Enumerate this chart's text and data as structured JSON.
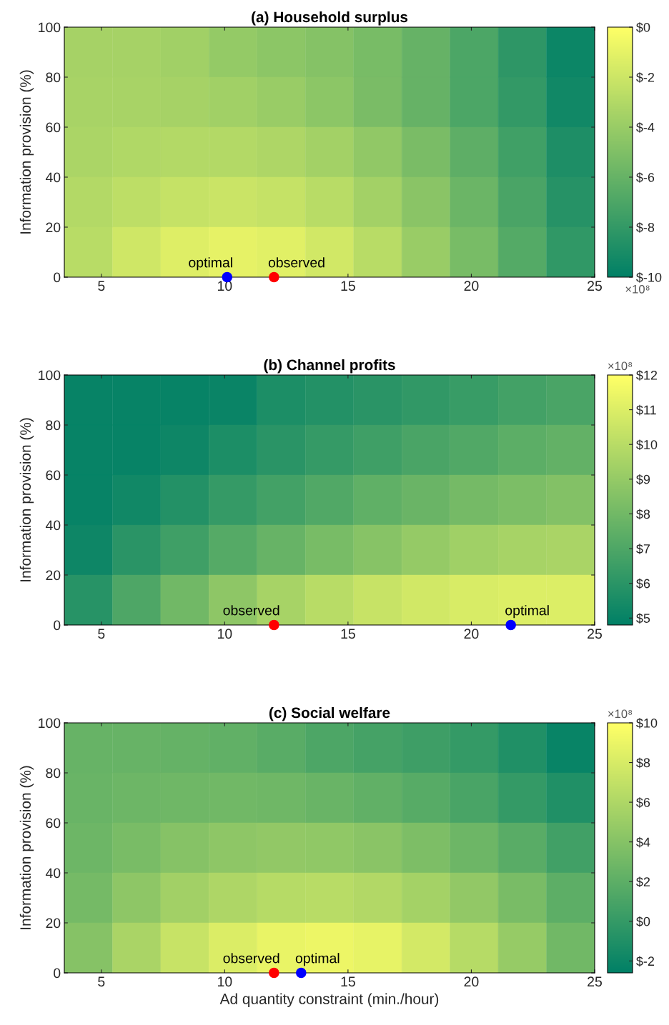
{
  "chart_data": [
    {
      "type": "heatmap",
      "title": "(a) Household surplus",
      "ylabel": "Information provision (%)",
      "xlim": [
        3.5,
        25
      ],
      "xticks": [
        5,
        10,
        15,
        20,
        25
      ],
      "ylim": [
        0,
        100
      ],
      "yticks": [
        0,
        20,
        40,
        60,
        80,
        100
      ],
      "cells": [
        [
          -3.5,
          -3.5,
          -3.7,
          -4.2,
          -4.5,
          -4.8,
          -5.3,
          -6.0,
          -7.0,
          -8.2,
          -9.5
        ],
        [
          -3.4,
          -3.4,
          -3.5,
          -3.7,
          -4.0,
          -4.5,
          -5.2,
          -6.0,
          -7.0,
          -8.0,
          -9.3
        ],
        [
          -3.3,
          -3.1,
          -3.0,
          -3.0,
          -3.2,
          -3.6,
          -4.3,
          -5.2,
          -6.3,
          -7.5,
          -8.8
        ],
        [
          -3.0,
          -2.6,
          -2.3,
          -2.1,
          -2.3,
          -2.8,
          -3.6,
          -4.6,
          -5.8,
          -7.1,
          -8.5
        ],
        [
          -2.8,
          -1.9,
          -1.3,
          -1.0,
          -1.2,
          -1.8,
          -2.8,
          -4.0,
          -5.3,
          -6.7,
          -8.1
        ]
      ],
      "clim": [
        -10,
        0
      ],
      "cticks": [
        {
          "value": 0,
          "label": "$0"
        },
        {
          "value": -2,
          "label": "$-2"
        },
        {
          "value": -4,
          "label": "$-4"
        },
        {
          "value": -6,
          "label": "$-6"
        },
        {
          "value": -8,
          "label": "$-8"
        },
        {
          "value": -10,
          "label": "$-10"
        }
      ],
      "annotations": [
        "×10⁸"
      ],
      "series": [
        {
          "type": "scatter",
          "name": "optimal",
          "color": "#0000ff",
          "x": [
            10.1
          ],
          "values": [
            0
          ]
        },
        {
          "type": "scatter",
          "name": "observed",
          "color": "#ff0000",
          "x": [
            12
          ],
          "values": [
            0
          ]
        }
      ]
    },
    {
      "type": "heatmap",
      "title": "(b) Channel profits",
      "ylabel": "Information provision (%)",
      "xlim": [
        3.5,
        25
      ],
      "xticks": [
        5,
        10,
        15,
        20,
        25
      ],
      "ylim": [
        0,
        100
      ],
      "yticks": [
        0,
        20,
        40,
        60,
        80,
        100
      ],
      "cells": [
        [
          5.0,
          5.0,
          5.0,
          5.1,
          5.6,
          5.8,
          6.0,
          6.2,
          6.4,
          6.7,
          6.9
        ],
        [
          5.0,
          5.0,
          5.2,
          5.6,
          6.0,
          6.3,
          6.6,
          6.9,
          7.1,
          7.4,
          7.6
        ],
        [
          5.0,
          5.3,
          5.8,
          6.3,
          6.7,
          7.1,
          7.5,
          7.8,
          8.1,
          8.3,
          8.5
        ],
        [
          5.2,
          6.0,
          6.6,
          7.2,
          7.7,
          8.2,
          8.6,
          9.0,
          9.3,
          9.5,
          9.6
        ],
        [
          5.9,
          7.0,
          8.0,
          8.8,
          9.5,
          10.0,
          10.4,
          10.7,
          10.9,
          11.0,
          11.0
        ]
      ],
      "clim": [
        4.8,
        12
      ],
      "cticks": [
        {
          "value": 5,
          "label": "$5"
        },
        {
          "value": 6,
          "label": "$6"
        },
        {
          "value": 7,
          "label": "$7"
        },
        {
          "value": 8,
          "label": "$8"
        },
        {
          "value": 9,
          "label": "$9"
        },
        {
          "value": 10,
          "label": "$10"
        },
        {
          "value": 11,
          "label": "$11"
        },
        {
          "value": 12,
          "label": "$12"
        }
      ],
      "clabel": "×10⁸",
      "series": [
        {
          "type": "scatter",
          "name": "observed",
          "color": "#ff0000",
          "x": [
            12
          ],
          "values": [
            0
          ]
        },
        {
          "type": "scatter",
          "name": "optimal",
          "color": "#0000ff",
          "x": [
            21.6
          ],
          "values": [
            0
          ]
        }
      ]
    },
    {
      "type": "heatmap",
      "title": "(c) Social welfare",
      "xlabel": "Ad quantity constraint (min./hour)",
      "ylabel": "Information provision (%)",
      "xlim": [
        3.5,
        25
      ],
      "xticks": [
        5,
        10,
        15,
        20,
        25
      ],
      "ylim": [
        0,
        100
      ],
      "yticks": [
        0,
        20,
        40,
        60,
        80,
        100
      ],
      "cells": [
        [
          2.5,
          2.5,
          2.4,
          2.2,
          1.8,
          1.2,
          0.8,
          0.5,
          0.0,
          -1.0,
          -2.2
        ],
        [
          2.6,
          2.8,
          2.9,
          3.0,
          2.9,
          2.6,
          2.2,
          1.7,
          1.0,
          0.0,
          -1.0
        ],
        [
          2.8,
          3.4,
          4.0,
          4.4,
          4.6,
          4.5,
          4.2,
          3.6,
          2.8,
          1.8,
          0.6
        ],
        [
          3.2,
          4.4,
          5.4,
          6.0,
          6.4,
          6.5,
          6.2,
          5.5,
          4.6,
          3.4,
          2.0
        ],
        [
          4.0,
          5.8,
          7.2,
          8.2,
          8.9,
          9.1,
          8.8,
          7.8,
          6.4,
          4.8,
          3.0
        ]
      ],
      "clim": [
        -2.6,
        10
      ],
      "cticks": [
        {
          "value": -2,
          "label": "$-2"
        },
        {
          "value": 0,
          "label": "$0"
        },
        {
          "value": 2,
          "label": "$2"
        },
        {
          "value": 4,
          "label": "$4"
        },
        {
          "value": 6,
          "label": "$6"
        },
        {
          "value": 8,
          "label": "$8"
        },
        {
          "value": 10,
          "label": "$10"
        }
      ],
      "clabel": "×10⁸",
      "series": [
        {
          "type": "scatter",
          "name": "observed",
          "color": "#ff0000",
          "x": [
            12
          ],
          "values": [
            0
          ]
        },
        {
          "type": "scatter",
          "name": "optimal",
          "color": "#0000ff",
          "x": [
            13.1
          ],
          "values": [
            0
          ]
        }
      ]
    }
  ]
}
